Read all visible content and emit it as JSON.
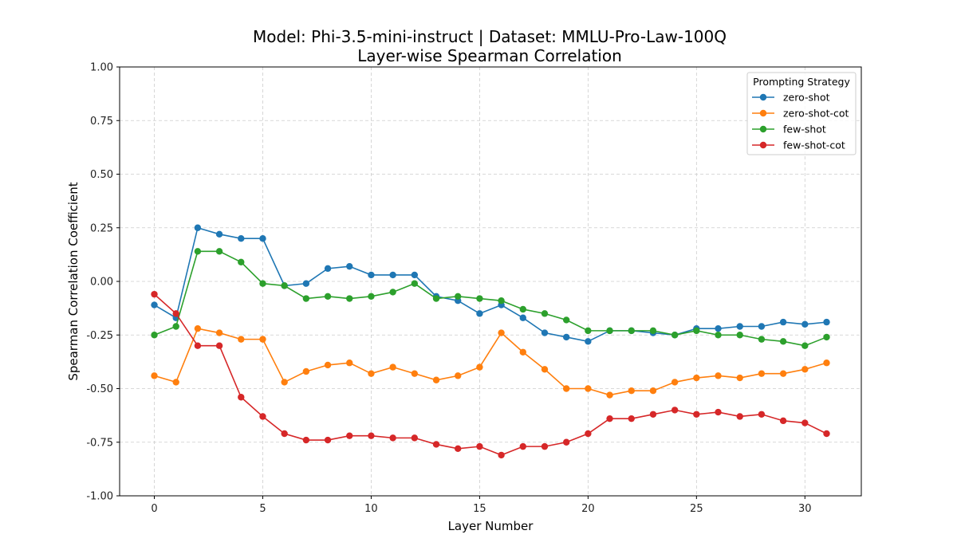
{
  "chart_data": {
    "type": "line",
    "title_line1": "Model: Phi-3.5-mini-instruct | Dataset: MMLU-Pro-Law-100Q",
    "title_line2": "Layer-wise Spearman Correlation",
    "xlabel": "Layer Number",
    "ylabel": "Spearman Correlation Coefficient",
    "xlim": [
      -1.6,
      32.6
    ],
    "ylim": [
      -1.0,
      1.0
    ],
    "xticks": [
      0,
      5,
      10,
      15,
      20,
      25,
      30
    ],
    "yticks": [
      -1.0,
      -0.75,
      -0.5,
      -0.25,
      0.0,
      0.25,
      0.5,
      0.75,
      1.0
    ],
    "ytick_labels": [
      "-1.00",
      "-0.75",
      "-0.50",
      "-0.25",
      "0.00",
      "0.25",
      "0.50",
      "0.75",
      "1.00"
    ],
    "grid": true,
    "legend": {
      "title": "Prompting Strategy",
      "placement": "top-right"
    },
    "x": [
      0,
      1,
      2,
      3,
      4,
      5,
      6,
      7,
      8,
      9,
      10,
      11,
      12,
      13,
      14,
      15,
      16,
      17,
      18,
      19,
      20,
      21,
      22,
      23,
      24,
      25,
      26,
      27,
      28,
      29,
      30,
      31
    ],
    "series": [
      {
        "name": "zero-shot",
        "color": "#1f77b4",
        "values": [
          -0.11,
          -0.17,
          0.25,
          0.22,
          0.2,
          0.2,
          -0.02,
          -0.01,
          0.06,
          0.07,
          0.03,
          0.03,
          0.03,
          -0.07,
          -0.09,
          -0.15,
          -0.11,
          -0.17,
          -0.24,
          -0.26,
          -0.28,
          -0.23,
          -0.23,
          -0.24,
          -0.25,
          -0.22,
          -0.22,
          -0.21,
          -0.21,
          -0.19,
          -0.2,
          -0.19
        ]
      },
      {
        "name": "zero-shot-cot",
        "color": "#ff7f0e",
        "values": [
          -0.44,
          -0.47,
          -0.22,
          -0.24,
          -0.27,
          -0.27,
          -0.47,
          -0.42,
          -0.39,
          -0.38,
          -0.43,
          -0.4,
          -0.43,
          -0.46,
          -0.44,
          -0.4,
          -0.24,
          -0.33,
          -0.41,
          -0.5,
          -0.5,
          -0.53,
          -0.51,
          -0.51,
          -0.47,
          -0.45,
          -0.44,
          -0.45,
          -0.43,
          -0.43,
          -0.41,
          -0.38
        ]
      },
      {
        "name": "few-shot",
        "color": "#2ca02c",
        "values": [
          -0.25,
          -0.21,
          0.14,
          0.14,
          0.09,
          -0.01,
          -0.02,
          -0.08,
          -0.07,
          -0.08,
          -0.07,
          -0.05,
          -0.01,
          -0.08,
          -0.07,
          -0.08,
          -0.09,
          -0.13,
          -0.15,
          -0.18,
          -0.23,
          -0.23,
          -0.23,
          -0.23,
          -0.25,
          -0.23,
          -0.25,
          -0.25,
          -0.27,
          -0.28,
          -0.3,
          -0.26
        ]
      },
      {
        "name": "few-shot-cot",
        "color": "#d62728",
        "values": [
          -0.06,
          -0.15,
          -0.3,
          -0.3,
          -0.54,
          -0.63,
          -0.71,
          -0.74,
          -0.74,
          -0.72,
          -0.72,
          -0.73,
          -0.73,
          -0.76,
          -0.78,
          -0.77,
          -0.81,
          -0.77,
          -0.77,
          -0.75,
          -0.71,
          -0.64,
          -0.64,
          -0.62,
          -0.6,
          -0.62,
          -0.61,
          -0.63,
          -0.62,
          -0.65,
          -0.66,
          -0.71
        ]
      }
    ]
  }
}
